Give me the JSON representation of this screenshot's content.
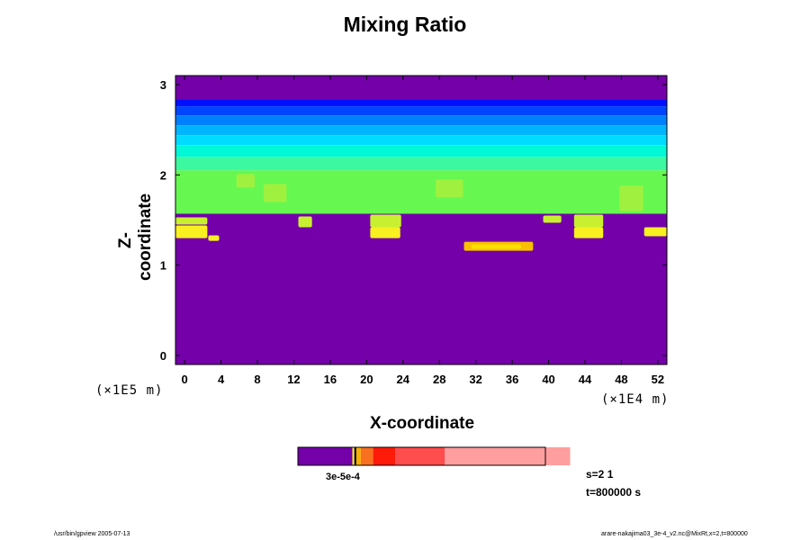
{
  "chart_data": {
    "type": "heatmap",
    "title": "Mixing Ratio",
    "xlabel": "X-coordinate",
    "ylabel": "Z-coordinate",
    "x_unit": "(×1E4 m)",
    "y_unit": "(×1E5 m)",
    "xlim": [
      -1,
      53
    ],
    "ylim": [
      -0.1,
      3.1
    ],
    "x_ticks": [
      "0",
      "4",
      "8",
      "12",
      "16",
      "20",
      "24",
      "28",
      "32",
      "36",
      "40",
      "44",
      "48",
      "52"
    ],
    "x_tick_values": [
      0,
      4,
      8,
      12,
      16,
      20,
      24,
      28,
      32,
      36,
      40,
      44,
      48,
      52
    ],
    "y_ticks": [
      "0",
      "1",
      "2",
      "3"
    ],
    "y_tick_values": [
      0,
      1,
      2,
      3
    ],
    "bands": [
      {
        "z0": -0.1,
        "z1": 1.57,
        "color": "#7300a9"
      },
      {
        "z0": 2.84,
        "z1": 3.1,
        "color": "#7300a9"
      },
      {
        "z0": 2.76,
        "z1": 2.84,
        "color": "#0010ff"
      },
      {
        "z0": 2.66,
        "z1": 2.76,
        "color": "#0044ff"
      },
      {
        "z0": 2.55,
        "z1": 2.66,
        "color": "#0080ff"
      },
      {
        "z0": 2.44,
        "z1": 2.55,
        "color": "#00b4ff"
      },
      {
        "z0": 2.33,
        "z1": 2.44,
        "color": "#00dcff"
      },
      {
        "z0": 2.2,
        "z1": 2.33,
        "color": "#00f8d6"
      },
      {
        "z0": 2.05,
        "z1": 2.2,
        "color": "#3cf8a0"
      },
      {
        "z0": 1.57,
        "z1": 2.05,
        "color": "#66f850"
      }
    ],
    "patches": [
      {
        "x": -1,
        "z": 1.3,
        "w": 3.5,
        "h": 0.14,
        "color": "#f8f020"
      },
      {
        "x": 2.6,
        "z": 1.27,
        "w": 1.2,
        "h": 0.06,
        "color": "#f8f020"
      },
      {
        "x": 20.4,
        "z": 1.3,
        "w": 3.3,
        "h": 0.12,
        "color": "#f8f020"
      },
      {
        "x": 42.8,
        "z": 1.3,
        "w": 3.2,
        "h": 0.12,
        "color": "#f8f020"
      },
      {
        "x": 50.5,
        "z": 1.32,
        "w": 2.5,
        "h": 0.1,
        "color": "#f8f020"
      },
      {
        "x": 30.7,
        "z": 1.16,
        "w": 7.6,
        "h": 0.1,
        "color": "#f8c000"
      },
      {
        "x": 31.5,
        "z": 1.18,
        "w": 5.5,
        "h": 0.05,
        "color": "#f8e000"
      },
      {
        "x": -1,
        "z": 1.45,
        "w": 3.5,
        "h": 0.08,
        "color": "#c8f030"
      },
      {
        "x": 20.4,
        "z": 1.42,
        "w": 3.4,
        "h": 0.14,
        "color": "#c8f030"
      },
      {
        "x": 42.8,
        "z": 1.42,
        "w": 3.2,
        "h": 0.14,
        "color": "#c8f030"
      },
      {
        "x": 12.5,
        "z": 1.42,
        "w": 1.5,
        "h": 0.12,
        "color": "#c8f030"
      },
      {
        "x": 39.4,
        "z": 1.47,
        "w": 2,
        "h": 0.08,
        "color": "#c8f030"
      },
      {
        "x": 8.7,
        "z": 1.7,
        "w": 2.5,
        "h": 0.2,
        "color": "#a0f040"
      },
      {
        "x": 27.6,
        "z": 1.75,
        "w": 3,
        "h": 0.2,
        "color": "#a0f040"
      },
      {
        "x": 47.8,
        "z": 1.6,
        "w": 2.6,
        "h": 0.28,
        "color": "#a0f040"
      },
      {
        "x": 5.7,
        "z": 1.86,
        "w": 2,
        "h": 0.15,
        "color": "#a0f040"
      }
    ],
    "colorbar": {
      "segments": [
        {
          "w": 0.22,
          "color": "#7300a9"
        },
        {
          "w": 0.008,
          "color": "#f8f020"
        },
        {
          "w": 0.008,
          "color": "#000000"
        },
        {
          "w": 0.018,
          "color": "#f8b000"
        },
        {
          "w": 0.05,
          "color": "#f87020"
        },
        {
          "w": 0.09,
          "color": "#ff1a0a"
        },
        {
          "w": 0.2,
          "color": "#ff4d4d"
        },
        {
          "w": 0.506,
          "color": "#ff9e9e"
        }
      ],
      "label": "3e-5e-4"
    },
    "grid": false,
    "legend": "none"
  },
  "info": {
    "line1": "s=2 1",
    "line2": "t=800000 s"
  },
  "footer": {
    "left": "/usr/bin/gpview 2005-07-13",
    "right": "arare-nakajima03_3e-4_v2.nc@MixRt,x=2,t=800000"
  }
}
